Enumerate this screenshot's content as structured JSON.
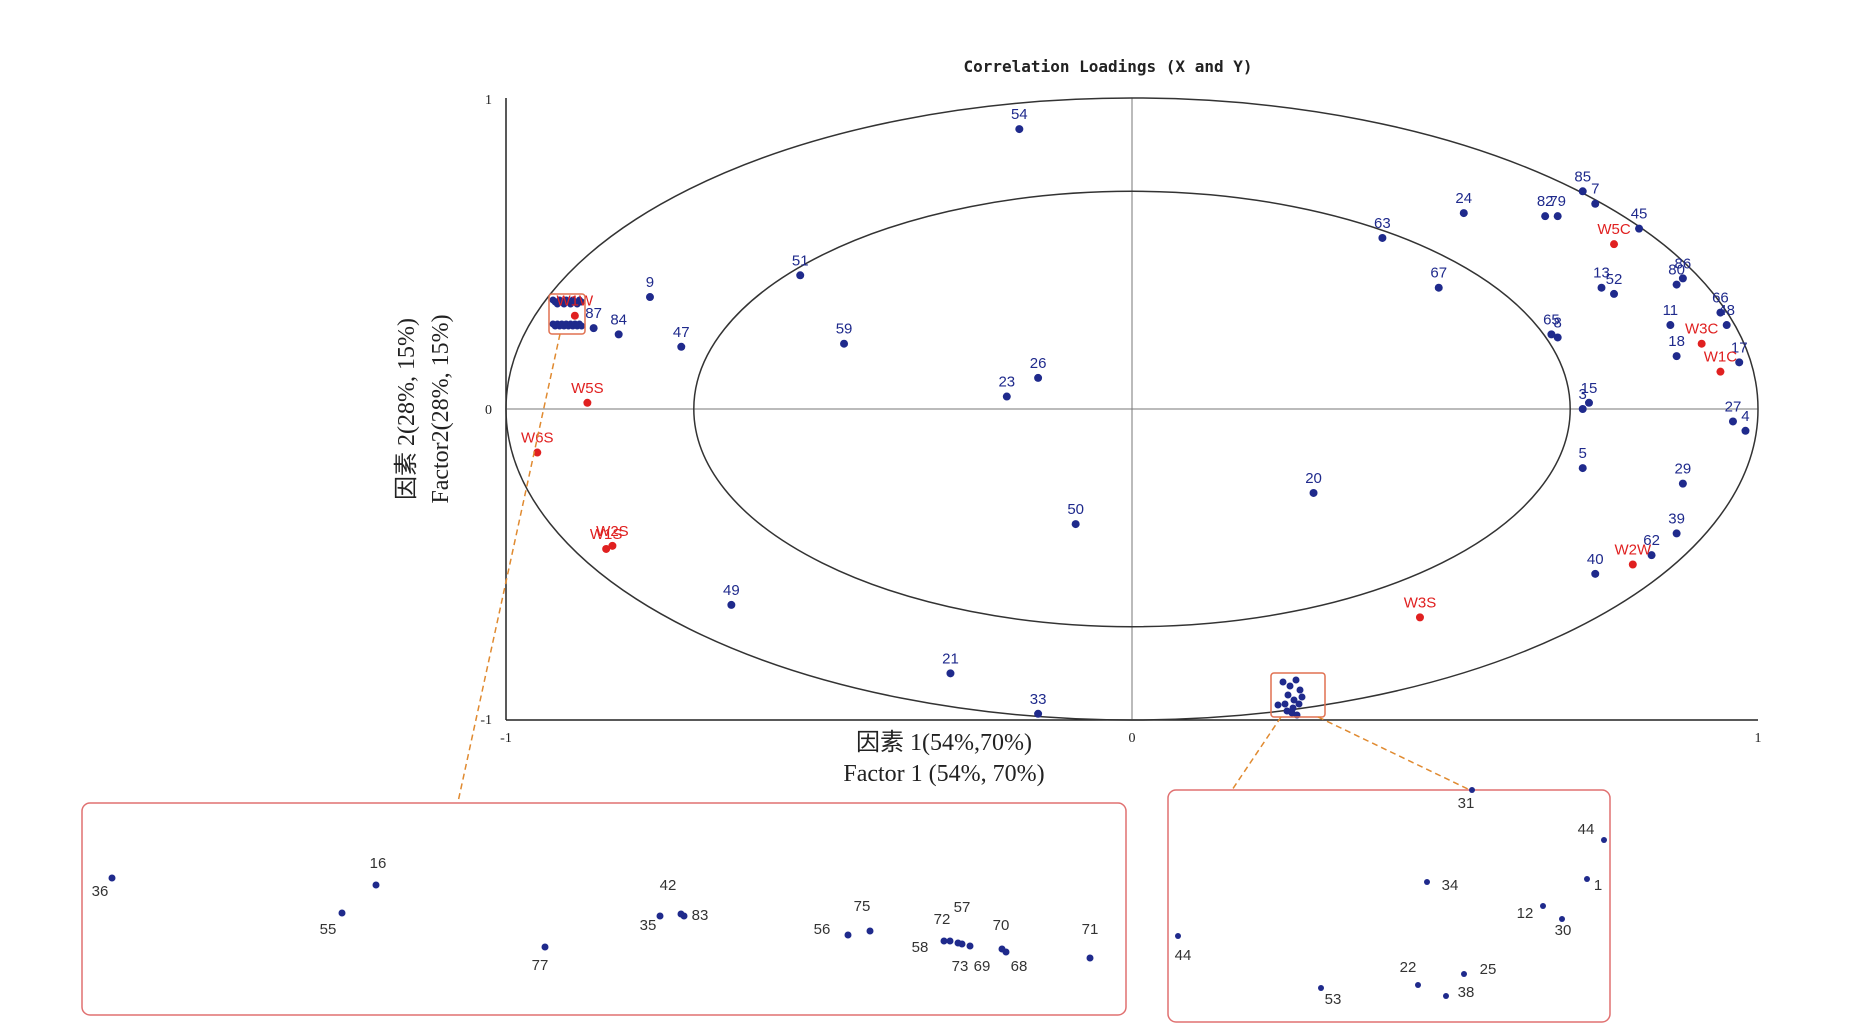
{
  "chart_data": {
    "type": "scatter",
    "title": "Correlation Loadings (X and Y)",
    "xlabel_cn": "因素 1(54%,70%)",
    "xlabel_en": "Factor 1 (54%, 70%)",
    "ylabel_cn": "因素 2(28%, 15%)",
    "ylabel_en": "Factor2(28%, 15%)",
    "xlim": [
      -1,
      1
    ],
    "ylim": [
      -1,
      1
    ],
    "xticks": [
      "-1",
      "0",
      "1"
    ],
    "yticks": [
      "1",
      "0",
      "-1"
    ],
    "ellipses": [
      1.0,
      0.7
    ],
    "colors": {
      "x_vars": "#1f2a8c",
      "y_vars": "#e02020",
      "highlight": "#e07050"
    },
    "x_variables": [
      {
        "label": "54",
        "x": -0.18,
        "y": 0.9
      },
      {
        "label": "51",
        "x": -0.53,
        "y": 0.43
      },
      {
        "label": "59",
        "x": -0.46,
        "y": 0.21
      },
      {
        "label": "9",
        "x": -0.77,
        "y": 0.36
      },
      {
        "label": "47",
        "x": -0.72,
        "y": 0.2
      },
      {
        "label": "84",
        "x": -0.82,
        "y": 0.24
      },
      {
        "label": "87",
        "x": -0.86,
        "y": 0.26
      },
      {
        "label": "23",
        "x": -0.2,
        "y": 0.04
      },
      {
        "label": "26",
        "x": -0.15,
        "y": 0.1
      },
      {
        "label": "50",
        "x": -0.09,
        "y": -0.37
      },
      {
        "label": "49",
        "x": -0.64,
        "y": -0.63
      },
      {
        "label": "21",
        "x": -0.29,
        "y": -0.85
      },
      {
        "label": "33",
        "x": -0.15,
        "y": -0.98
      },
      {
        "label": "63",
        "x": 0.4,
        "y": 0.55
      },
      {
        "label": "24",
        "x": 0.53,
        "y": 0.63
      },
      {
        "label": "67",
        "x": 0.49,
        "y": 0.39
      },
      {
        "label": "20",
        "x": 0.29,
        "y": -0.27
      },
      {
        "label": "82",
        "x": 0.66,
        "y": 0.62
      },
      {
        "label": "79",
        "x": 0.68,
        "y": 0.62
      },
      {
        "label": "85",
        "x": 0.72,
        "y": 0.7
      },
      {
        "label": "7",
        "x": 0.74,
        "y": 0.66
      },
      {
        "label": "45",
        "x": 0.81,
        "y": 0.58
      },
      {
        "label": "13",
        "x": 0.75,
        "y": 0.39
      },
      {
        "label": "52",
        "x": 0.77,
        "y": 0.37
      },
      {
        "label": "65",
        "x": 0.67,
        "y": 0.24
      },
      {
        "label": "8",
        "x": 0.68,
        "y": 0.23
      },
      {
        "label": "15",
        "x": 0.73,
        "y": 0.02
      },
      {
        "label": "3",
        "x": 0.72,
        "y": 0.0
      },
      {
        "label": "5",
        "x": 0.72,
        "y": -0.19
      },
      {
        "label": "40",
        "x": 0.74,
        "y": -0.53
      },
      {
        "label": "86",
        "x": 0.88,
        "y": 0.42
      },
      {
        "label": "80",
        "x": 0.87,
        "y": 0.4
      },
      {
        "label": "66",
        "x": 0.94,
        "y": 0.31
      },
      {
        "label": "11",
        "x": 0.86,
        "y": 0.27
      },
      {
        "label": "18",
        "x": 0.87,
        "y": 0.17
      },
      {
        "label": "48",
        "x": 0.95,
        "y": 0.27
      },
      {
        "label": "17",
        "x": 0.97,
        "y": 0.15
      },
      {
        "label": "27",
        "x": 0.96,
        "y": -0.04
      },
      {
        "label": "4",
        "x": 0.98,
        "y": -0.07
      },
      {
        "label": "29",
        "x": 0.88,
        "y": -0.24
      },
      {
        "label": "39",
        "x": 0.87,
        "y": -0.4
      },
      {
        "label": "62",
        "x": 0.83,
        "y": -0.47
      }
    ],
    "y_variables": [
      {
        "label": "W1W",
        "x": -0.89,
        "y": 0.3
      },
      {
        "label": "W5S",
        "x": -0.87,
        "y": 0.02
      },
      {
        "label": "W6S",
        "x": -0.95,
        "y": -0.14
      },
      {
        "label": "W2S",
        "x": -0.83,
        "y": -0.44
      },
      {
        "label": "W1S",
        "x": -0.84,
        "y": -0.45
      },
      {
        "label": "W5C",
        "x": 0.77,
        "y": 0.53
      },
      {
        "label": "W3C",
        "x": 0.91,
        "y": 0.21
      },
      {
        "label": "W1C",
        "x": 0.94,
        "y": 0.12
      },
      {
        "label": "W2W",
        "x": 0.8,
        "y": -0.5
      },
      {
        "label": "W3S",
        "x": 0.46,
        "y": -0.67
      }
    ],
    "cluster_left_labels": [
      "36",
      "16",
      "55",
      "77",
      "42",
      "35",
      "83",
      "56",
      "75",
      "72",
      "57",
      "58",
      "73",
      "69",
      "70",
      "68",
      "71"
    ],
    "cluster_bottom_labels": [
      "31",
      "44",
      "34",
      "1",
      "12",
      "30",
      "44",
      "22",
      "25",
      "38",
      "53"
    ]
  }
}
